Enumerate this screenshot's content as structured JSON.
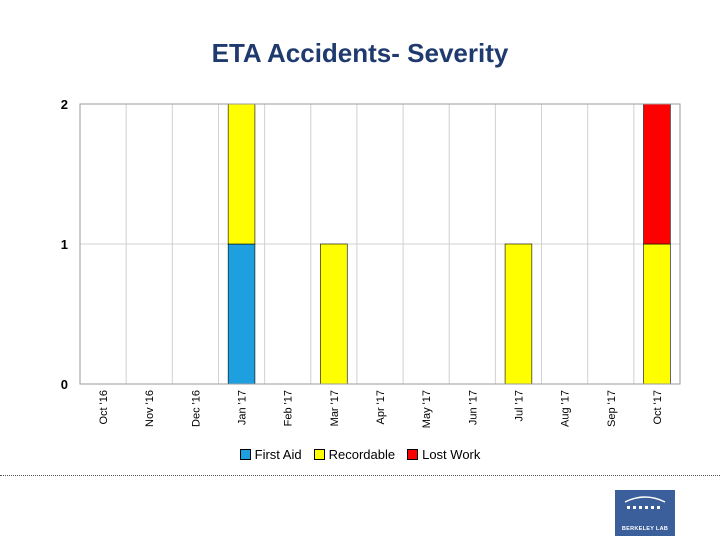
{
  "chart_data": {
    "type": "bar",
    "stacked": true,
    "title": "ETA Accidents- Severity",
    "categories": [
      "Oct '16",
      "Nov '16",
      "Dec '16",
      "Jan '17",
      "Feb '17",
      "Mar '17",
      "Apr '17",
      "May '17",
      "Jun '17",
      "Jul '17",
      "Aug '17",
      "Sep '17",
      "Oct '17"
    ],
    "series": [
      {
        "name": "First Aid",
        "color": "#1ea0e0",
        "values": [
          0,
          0,
          0,
          1,
          0,
          0,
          0,
          0,
          0,
          0,
          0,
          0,
          0
        ]
      },
      {
        "name": "Recordable",
        "color": "#ffff00",
        "values": [
          0,
          0,
          0,
          1,
          0,
          1,
          0,
          0,
          0,
          1,
          0,
          0,
          1
        ]
      },
      {
        "name": "Lost Work",
        "color": "#ff0000",
        "values": [
          0,
          0,
          0,
          0,
          0,
          0,
          0,
          0,
          0,
          0,
          0,
          0,
          1
        ]
      }
    ],
    "y_ticks": [
      "0",
      "1",
      "2"
    ],
    "ylim": [
      0,
      2
    ],
    "grid": true,
    "legend_position": "bottom"
  },
  "logo": {
    "text": "BERKELEY LAB"
  }
}
